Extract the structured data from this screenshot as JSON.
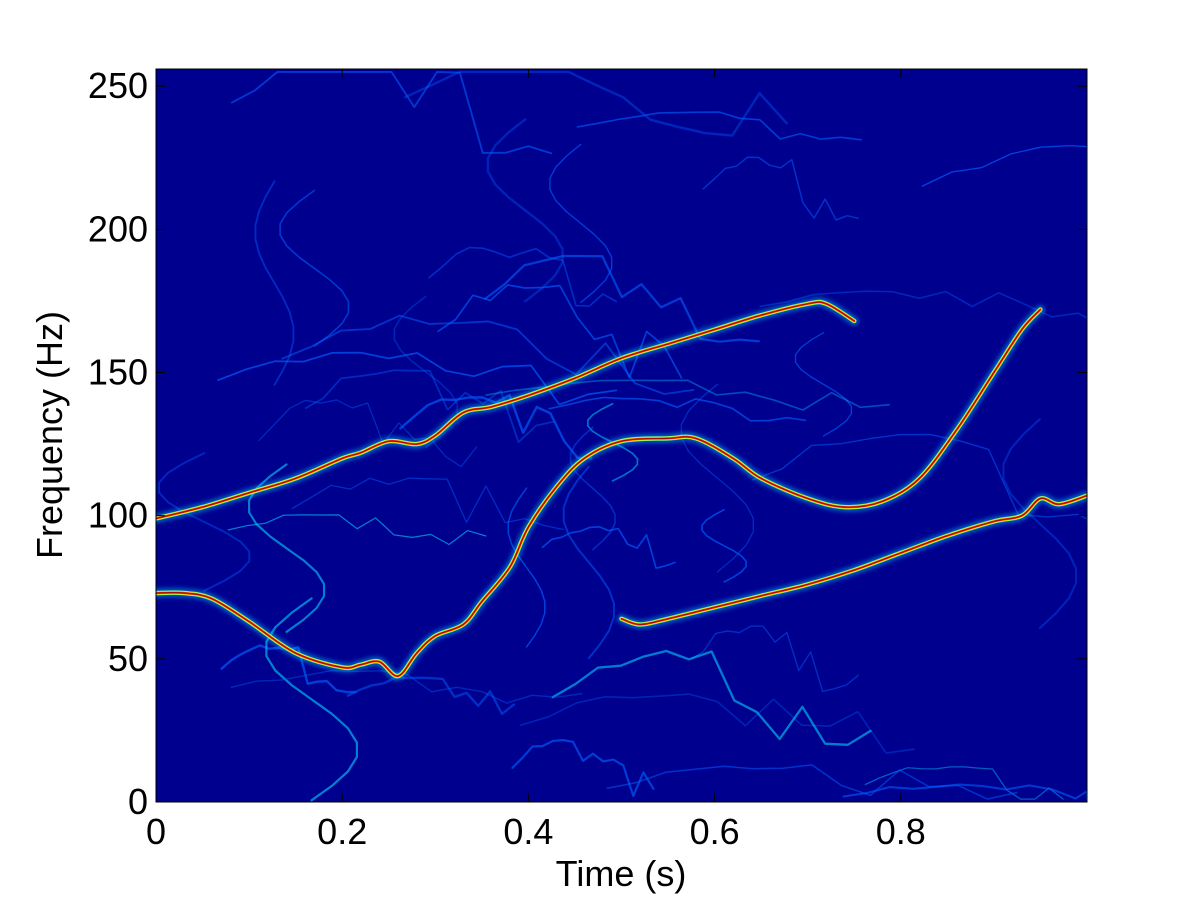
{
  "chart_data": {
    "type": "heatmap",
    "subtype": "time-frequency spectrogram",
    "title": "",
    "xlabel": "Time (s)",
    "ylabel": "Frequency (Hz)",
    "xlim": [
      0,
      1.0
    ],
    "ylim": [
      0,
      256
    ],
    "xticks": [
      0,
      0.2,
      0.4,
      0.6,
      0.8
    ],
    "xtick_labels": [
      "0",
      "0.2",
      "0.4",
      "0.6",
      "0.8"
    ],
    "yticks": [
      0,
      50,
      100,
      150,
      200,
      250
    ],
    "ytick_labels": [
      "0",
      "50",
      "100",
      "150",
      "200",
      "250"
    ],
    "grid": false,
    "legend": "none",
    "colormap": "jet",
    "background_color": "#00008f",
    "ridge_colors": [
      "#0060ff",
      "#00d0ff",
      "#80ff80",
      "#ffff00",
      "#ff4000",
      "#a00000"
    ],
    "series": [
      {
        "x": [
          0.0,
          0.05,
          0.1,
          0.15,
          0.2,
          0.22,
          0.25,
          0.28,
          0.3,
          0.33,
          0.36,
          0.4,
          0.45,
          0.5,
          0.55,
          0.6,
          0.65,
          0.7,
          0.72,
          0.75
        ],
        "y": [
          99,
          103,
          108,
          113,
          120,
          122,
          126,
          125,
          128,
          136,
          138,
          142,
          148,
          155,
          160,
          165,
          170,
          174,
          174,
          168
        ]
      },
      {
        "x": [
          0.0,
          0.03,
          0.06,
          0.1,
          0.15,
          0.2,
          0.22,
          0.24,
          0.26,
          0.28,
          0.3,
          0.33,
          0.35,
          0.38,
          0.4,
          0.43,
          0.46,
          0.5,
          0.55,
          0.58,
          0.62,
          0.65,
          0.7,
          0.74,
          0.78,
          0.82,
          0.86,
          0.9,
          0.93,
          0.95
        ],
        "y": [
          73,
          73,
          71,
          63,
          52,
          47,
          48,
          49,
          44,
          52,
          58,
          62,
          70,
          82,
          96,
          110,
          120,
          126,
          127,
          127,
          120,
          113,
          106,
          103,
          105,
          113,
          130,
          150,
          165,
          172
        ]
      },
      {
        "x": [
          0.5,
          0.52,
          0.55,
          0.6,
          0.65,
          0.7,
          0.75,
          0.8,
          0.85,
          0.9,
          0.93,
          0.95,
          0.97,
          1.0
        ],
        "y": [
          64,
          62,
          64,
          68,
          72,
          76,
          81,
          87,
          93,
          98,
          100,
          106,
          104,
          107
        ]
      }
    ]
  }
}
